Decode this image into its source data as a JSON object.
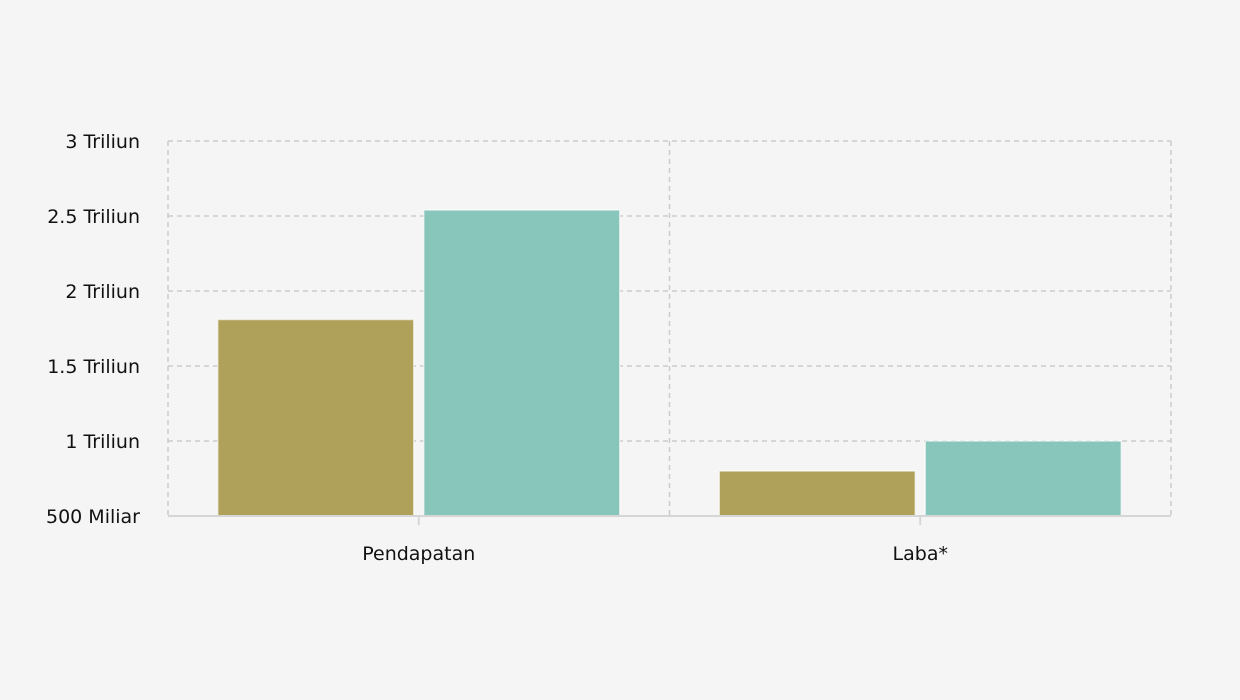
{
  "chart_data": {
    "type": "bar",
    "title": "",
    "xlabel": "",
    "ylabel": "",
    "categories": [
      "Pendapatan",
      "Laba*"
    ],
    "series": [
      {
        "values": [
          1.81,
          0.8
        ],
        "color": "#afa15a"
      },
      {
        "values": [
          2.54,
          1.0
        ],
        "color": "#88c5ba"
      }
    ],
    "unit": "Triliun",
    "ylim": [
      0.5,
      3
    ],
    "yticks": [
      0.5,
      1,
      1.5,
      2,
      2.5,
      3
    ],
    "ytick_labels": [
      "500 Miliar",
      "1 Triliun",
      "1.5 Triliun",
      "2 Triliun",
      "2.5 Triliun",
      "3 Triliun"
    ],
    "grid": true,
    "legend": "none"
  }
}
